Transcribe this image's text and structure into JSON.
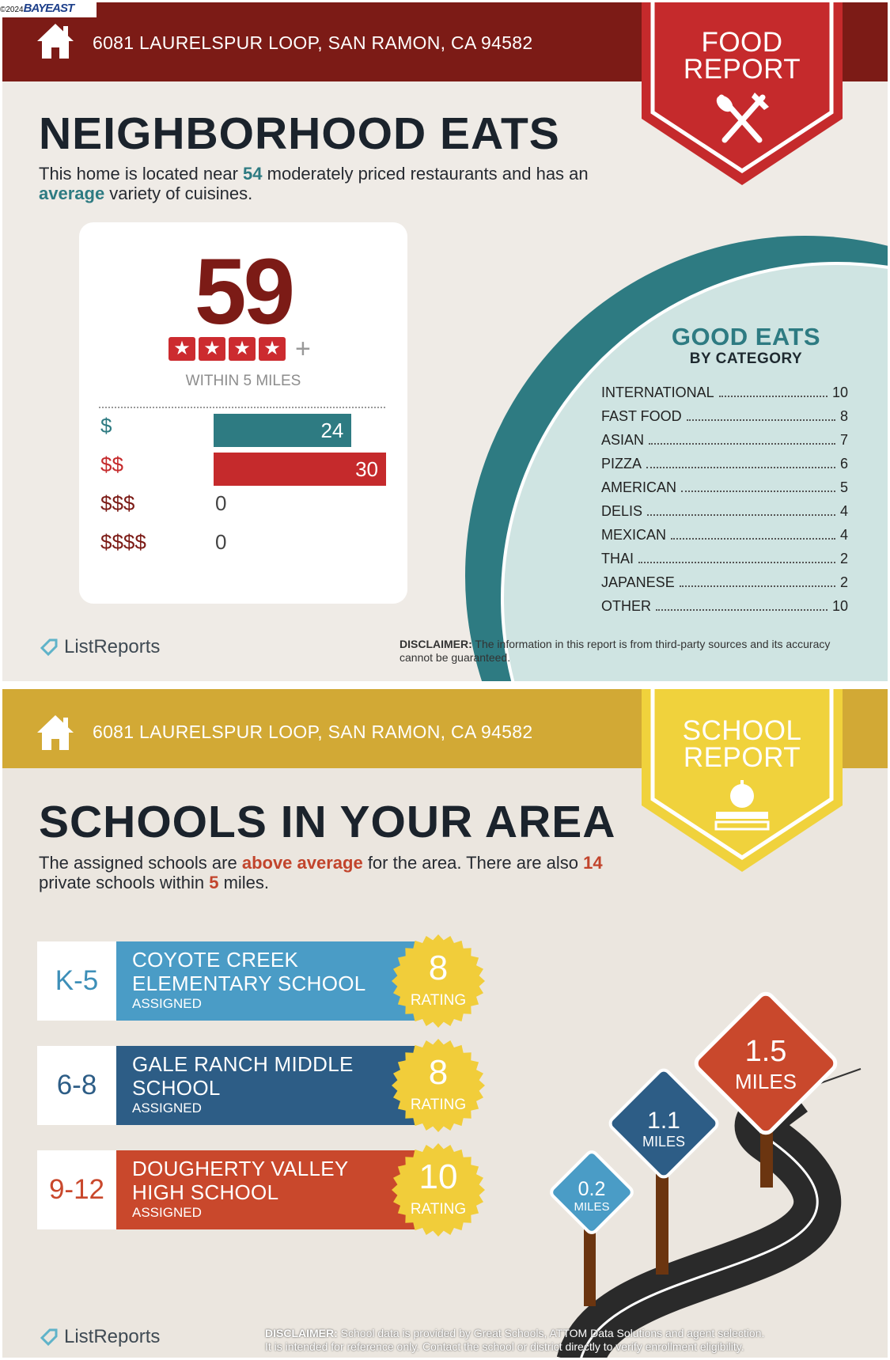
{
  "top_logo": {
    "year": "©2024",
    "brand": "BAYEAST"
  },
  "food": {
    "address": "6081 LAURELSPUR LOOP, SAN RAMON, CA 94582",
    "badge": {
      "line1": "FOOD",
      "line2": "REPORT",
      "icon": "fork-knife-icon"
    },
    "title": "NEIGHBORHOOD EATS",
    "intro": {
      "p1": "This home is located near ",
      "count": "54",
      "p2": " moderately priced restaurants and has an ",
      "variety": "average",
      "p3": " variety of cuisines."
    },
    "score": "59",
    "stars": 4,
    "stars_plus": "+",
    "within": "WITHIN 5 MILES",
    "price_levels": [
      {
        "label": "$",
        "value": 24,
        "color": "#2e7b82"
      },
      {
        "label": "$$",
        "value": 30,
        "color": "#c52a2c"
      },
      {
        "label": "$$$",
        "value": 0,
        "color": "#7c1b16"
      },
      {
        "label": "$$$$",
        "value": 0,
        "color": "#7c1b16"
      }
    ],
    "good_eats_title": "GOOD EATS",
    "good_eats_sub": "BY CATEGORY",
    "categories": [
      {
        "name": "INTERNATIONAL",
        "count": "10"
      },
      {
        "name": "FAST FOOD",
        "count": "8"
      },
      {
        "name": "ASIAN",
        "count": "7"
      },
      {
        "name": "PIZZA",
        "count": "6"
      },
      {
        "name": "AMERICAN",
        "count": "5"
      },
      {
        "name": "DELIS",
        "count": "4"
      },
      {
        "name": "MEXICAN",
        "count": "4"
      },
      {
        "name": "THAI",
        "count": "2"
      },
      {
        "name": "JAPANESE",
        "count": "2"
      },
      {
        "name": "OTHER",
        "count": "10"
      }
    ],
    "brand": "ListReports",
    "disclaimer_label": "DISCLAIMER:",
    "disclaimer_text": " The information in this report is from third-party sources and its accuracy cannot be guaranteed."
  },
  "school": {
    "address": "6081 LAURELSPUR LOOP, SAN RAMON, CA 94582",
    "badge": {
      "line1": "SCHOOL",
      "line2": "REPORT",
      "icon": "apple-books-icon"
    },
    "title": "SCHOOLS IN YOUR AREA",
    "intro": {
      "p1": "The assigned schools are ",
      "quality": "above average",
      "p2": " for the area. There are also ",
      "private": "14",
      "p3": " private schools within ",
      "miles": "5",
      "p4": " miles."
    },
    "schools": [
      {
        "grades": "K-5",
        "name1": "COYOTE CREEK",
        "name2": "ELEMENTARY SCHOOL",
        "status": "ASSIGNED",
        "rating": "8",
        "rating_label": "RATING",
        "color": "#4a9cc6",
        "grade_color": "#3d8fb8"
      },
      {
        "grades": "6-8",
        "name1": "GALE RANCH MIDDLE",
        "name2": "SCHOOL",
        "status": "ASSIGNED",
        "rating": "8",
        "rating_label": "RATING",
        "color": "#2d5d86",
        "grade_color": "#2d5d86"
      },
      {
        "grades": "9-12",
        "name1": "DOUGHERTY VALLEY",
        "name2": "HIGH SCHOOL",
        "status": "ASSIGNED",
        "rating": "10",
        "rating_label": "RATING",
        "color": "#c9482c",
        "grade_color": "#c9482c"
      }
    ],
    "signs": [
      {
        "dist": "0.2",
        "unit": "MILES"
      },
      {
        "dist": "1.1",
        "unit": "MILES"
      },
      {
        "dist": "1.5",
        "unit": "MILES"
      }
    ],
    "brand": "ListReports",
    "disclaimer_label": "DISCLAIMER:",
    "disclaimer_text1": " School data is provided by Great Schools, ATTOM Data Solutions and agent selection.",
    "disclaimer_text2": "It is intended for reference only. Contact the school or district directly to verify enrollment eligibility."
  }
}
